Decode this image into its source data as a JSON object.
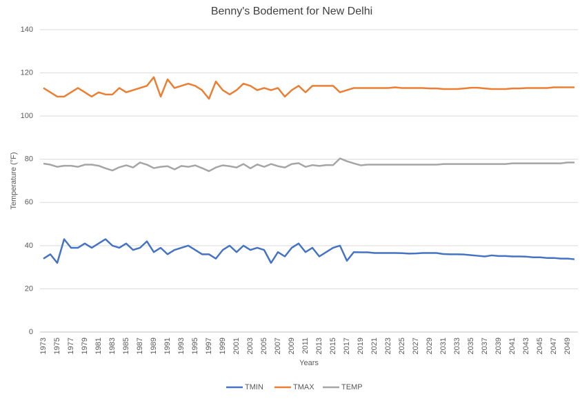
{
  "chart_data": {
    "type": "line",
    "title": "Benny's Bodement for New Delhi",
    "x_label": "Years",
    "y_label": "Temperature (°F)",
    "categories": [
      "1973",
      null,
      "1975",
      null,
      "1977",
      null,
      "1979",
      null,
      "1981",
      null,
      "1983",
      null,
      "1985",
      null,
      "1987",
      null,
      "1989",
      null,
      "1991",
      null,
      "1993",
      null,
      "1995",
      null,
      "1997",
      null,
      "1999",
      null,
      "2001",
      null,
      "2003",
      null,
      "2005",
      null,
      "2007",
      null,
      "2009",
      null,
      "2011",
      null,
      "2013",
      null,
      "2015",
      null,
      "2017",
      null,
      "2019",
      null,
      "2021",
      null,
      "2023",
      null,
      "2025",
      null,
      "2027",
      null,
      "2029",
      null,
      "2031",
      null,
      "2033",
      null,
      "2035",
      null,
      "2037",
      null,
      "2039",
      null,
      "2041",
      null,
      "2043",
      null,
      "2045",
      null,
      "2047",
      null,
      "2049",
      null
    ],
    "series": [
      {
        "name": "TMIN",
        "color": "#4472c4",
        "values": [
          34,
          36,
          32,
          43,
          39,
          39,
          41,
          39,
          41,
          43,
          40,
          39,
          41,
          38,
          39,
          42,
          37,
          39,
          36,
          38,
          39,
          40,
          38,
          36,
          36,
          34,
          38,
          40,
          37,
          40,
          38,
          39,
          38,
          32,
          37,
          35,
          39,
          41,
          37,
          39,
          35,
          37,
          39,
          40,
          33,
          37,
          36.9,
          36.9,
          36.6,
          36.6,
          36.6,
          36.6,
          36.5,
          36.3,
          36.4,
          36.6,
          36.6,
          36.6,
          36.1,
          36.0,
          36.0,
          35.9,
          35.6,
          35.3,
          35.0,
          35.5,
          35.2,
          35.2,
          35.0,
          35.0,
          34.9,
          34.6,
          34.6,
          34.3,
          34.3,
          34.0,
          34.0,
          33.7
        ]
      },
      {
        "name": "TMAX",
        "color": "#ed7d31",
        "values": [
          113,
          111,
          109,
          109,
          111,
          113,
          111,
          109,
          111,
          110,
          110,
          113,
          111,
          112,
          113,
          114,
          118,
          109,
          117,
          113,
          114,
          115,
          114,
          112,
          108,
          116,
          112,
          110,
          112,
          115,
          114,
          112,
          113,
          112,
          113,
          109,
          112,
          114,
          111,
          114,
          114,
          114,
          114,
          111,
          112,
          113,
          113,
          113,
          113,
          113,
          113,
          113.3,
          113,
          113,
          113,
          113,
          112.8,
          112.8,
          112.5,
          112.5,
          112.5,
          112.8,
          113.1,
          113.1,
          112.8,
          112.5,
          112.5,
          112.5,
          112.8,
          112.8,
          113,
          113,
          113,
          113,
          113.3,
          113.3,
          113.3,
          113.3
        ]
      },
      {
        "name": "TEMP",
        "color": "#a5a5a5",
        "values": [
          78,
          77.5,
          76.5,
          77,
          77,
          76.5,
          77.5,
          77.5,
          77,
          75.8,
          74.8,
          76.3,
          77.2,
          76.2,
          78.5,
          77.5,
          75.9,
          76.5,
          76.8,
          75.3,
          76.9,
          76.5,
          77.2,
          75.9,
          74.5,
          76.2,
          77.2,
          76.8,
          76.2,
          77.8,
          75.8,
          77.6,
          76.5,
          77.8,
          76.8,
          76.2,
          77.8,
          78.2,
          76.5,
          77.3,
          76.9,
          77.3,
          77.3,
          80.4,
          79.1,
          78.1,
          77.2,
          77.5,
          77.5,
          77.5,
          77.5,
          77.5,
          77.5,
          77.5,
          77.5,
          77.5,
          77.5,
          77.5,
          77.8,
          77.8,
          77.8,
          77.8,
          77.8,
          77.8,
          77.8,
          77.8,
          77.8,
          77.8,
          78.1,
          78.1,
          78.1,
          78.1,
          78.1,
          78.1,
          78.1,
          78.1,
          78.5,
          78.5
        ]
      }
    ],
    "ylim": [
      0,
      140
    ],
    "yticks": [
      0,
      20,
      40,
      60,
      80,
      100,
      120,
      140
    ],
    "grid": true,
    "legend": "bottom"
  }
}
